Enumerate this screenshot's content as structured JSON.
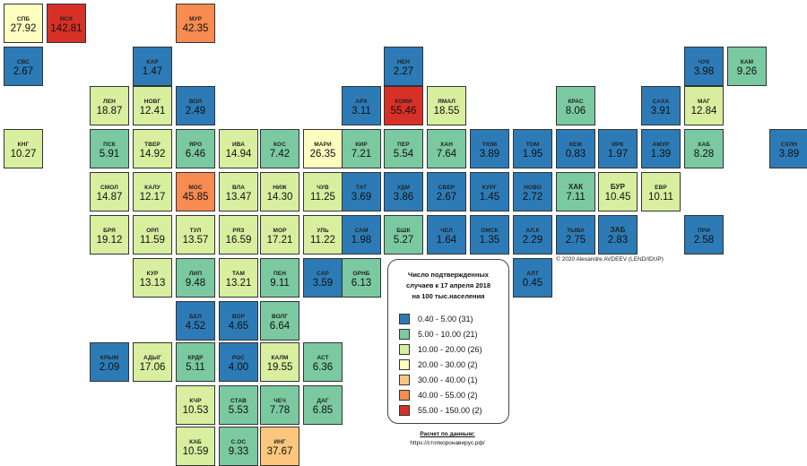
{
  "legend": {
    "title_lines": [
      "Число подтвержденных",
      "случаев к 17 апреля 2018",
      "на 100 тыс.населения"
    ],
    "items": [
      {
        "label": "0.40 - 5.00 (31)",
        "color": "#2d7bb6"
      },
      {
        "label": "5.00 - 10.00 (21)",
        "color": "#7bc9a0"
      },
      {
        "label": "10.00 - 20.00 (26)",
        "color": "#d7ef9f"
      },
      {
        "label": "20.00 - 30.00 (2)",
        "color": "#fdfdbf"
      },
      {
        "label": "30.00 - 40.00 (1)",
        "color": "#fcc77d"
      },
      {
        "label": "40.00 - 55.00 (2)",
        "color": "#f88b50"
      },
      {
        "label": "55.00 - 150.00 (2)",
        "color": "#d73027"
      }
    ]
  },
  "credit": "© 2020 Alexandre AVDEEV (LEND/IDUP)",
  "source": {
    "title": "Расчет по данным:",
    "url": "https://стопкоронавирус.рф/"
  },
  "regions": [
    {
      "code": "СПБ",
      "value": "27.92",
      "v": 27.92
    },
    {
      "code": "МСК",
      "value": "142.81",
      "v": 142.81
    },
    {
      "code": "МУР",
      "value": "42.35",
      "v": 42.35
    },
    {
      "code": "СВС",
      "value": "2.67",
      "v": 2.67
    },
    {
      "code": "КАР",
      "value": "1.47",
      "v": 1.47
    },
    {
      "code": "НЕН",
      "value": "2.27",
      "v": 2.27
    },
    {
      "code": "ЧУК",
      "value": "3.98",
      "v": 3.98
    },
    {
      "code": "КАМ",
      "value": "9.26",
      "v": 9.26
    },
    {
      "code": "ЛЕН",
      "value": "18.87",
      "v": 18.87
    },
    {
      "code": "НОВГ",
      "value": "12.41",
      "v": 12.41
    },
    {
      "code": "ВОЛ",
      "value": "2.49",
      "v": 2.49
    },
    {
      "code": "АРХ",
      "value": "3.11",
      "v": 3.11
    },
    {
      "code": "КОМИ",
      "value": "55.46",
      "v": 55.46
    },
    {
      "code": "ЯМАЛ",
      "value": "18.55",
      "v": 18.55
    },
    {
      "code": "КРАС",
      "value": "8.06",
      "v": 8.06
    },
    {
      "code": "САХА",
      "value": "3.91",
      "v": 3.91
    },
    {
      "code": "МАГ",
      "value": "12.84",
      "v": 12.84
    },
    {
      "code": "КНГ",
      "value": "10.27",
      "v": 10.27
    },
    {
      "code": "ПСК",
      "value": "5.91",
      "v": 5.91
    },
    {
      "code": "ТВЕР",
      "value": "14.92",
      "v": 14.92
    },
    {
      "code": "ЯРО",
      "value": "6.46",
      "v": 6.46
    },
    {
      "code": "ИВА",
      "value": "14.94",
      "v": 14.94
    },
    {
      "code": "КОС",
      "value": "7.42",
      "v": 7.42
    },
    {
      "code": "МАРИ",
      "value": "26.35",
      "v": 26.35
    },
    {
      "code": "КИР",
      "value": "7.21",
      "v": 7.21
    },
    {
      "code": "ПЕР",
      "value": "5.54",
      "v": 5.54
    },
    {
      "code": "ХАН",
      "value": "7.64",
      "v": 7.64
    },
    {
      "code": "ТЮМ",
      "value": "3.89",
      "v": 3.89
    },
    {
      "code": "ТОМ",
      "value": "1.95",
      "v": 1.95
    },
    {
      "code": "КЕМ",
      "value": "0.83",
      "v": 0.83
    },
    {
      "code": "ИРК",
      "value": "1.97",
      "v": 1.97
    },
    {
      "code": "АМУР",
      "value": "1.39",
      "v": 1.39
    },
    {
      "code": "ХАБ",
      "value": "8.28",
      "v": 8.28
    },
    {
      "code": "СХЛН",
      "value": "3.89",
      "v": 3.89
    },
    {
      "code": "СМОЛ",
      "value": "14.87",
      "v": 14.87
    },
    {
      "code": "КАЛУ",
      "value": "12.17",
      "v": 12.17
    },
    {
      "code": "МОС",
      "value": "45.85",
      "v": 45.85
    },
    {
      "code": "ВЛА",
      "value": "13.47",
      "v": 13.47
    },
    {
      "code": "НИЖ",
      "value": "14.30",
      "v": 14.3
    },
    {
      "code": "ЧУВ",
      "value": "11.25",
      "v": 11.25
    },
    {
      "code": "ТАТ",
      "value": "3.69",
      "v": 3.69
    },
    {
      "code": "УДМ",
      "value": "3.86",
      "v": 3.86
    },
    {
      "code": "СВЕР",
      "value": "2.67",
      "v": 2.67
    },
    {
      "code": "КУРГ",
      "value": "1.45",
      "v": 1.45
    },
    {
      "code": "НОВО",
      "value": "2.72",
      "v": 2.72
    },
    {
      "code": "ХАК",
      "value": "7.11",
      "v": 7.11
    },
    {
      "code": "БУР",
      "value": "10.45",
      "v": 10.45
    },
    {
      "code": "ЕВР",
      "value": "10.11",
      "v": 10.11
    },
    {
      "code": "БРЯ",
      "value": "19.12",
      "v": 19.12
    },
    {
      "code": "ОРЛ",
      "value": "11.59",
      "v": 11.59
    },
    {
      "code": "ТУЛ",
      "value": "13.57",
      "v": 13.57
    },
    {
      "code": "РЯЗ",
      "value": "16.59",
      "v": 16.59
    },
    {
      "code": "МОР",
      "value": "17.21",
      "v": 17.21
    },
    {
      "code": "УЛЬ",
      "value": "11.22",
      "v": 11.22
    },
    {
      "code": "САМ",
      "value": "1.98",
      "v": 1.98
    },
    {
      "code": "БШК",
      "value": "5.27",
      "v": 5.27
    },
    {
      "code": "ЧЕЛ",
      "value": "1.64",
      "v": 1.64
    },
    {
      "code": "ОМСК",
      "value": "1.35",
      "v": 1.35
    },
    {
      "code": "АЛ.К",
      "value": "2.29",
      "v": 2.29
    },
    {
      "code": "ТЫВА",
      "value": "2.75",
      "v": 2.75
    },
    {
      "code": "ЗАБ",
      "value": "2.83",
      "v": 2.83
    },
    {
      "code": "ПРИ",
      "value": "2.58",
      "v": 2.58
    },
    {
      "code": "КУР",
      "value": "13.13",
      "v": 13.13
    },
    {
      "code": "ЛИП",
      "value": "9.48",
      "v": 9.48
    },
    {
      "code": "ТАМ",
      "value": "13.21",
      "v": 13.21
    },
    {
      "code": "ПЕН",
      "value": "9.11",
      "v": 9.11
    },
    {
      "code": "САР",
      "value": "3.59",
      "v": 3.59
    },
    {
      "code": "ОРНБ",
      "value": "6.13",
      "v": 6.13
    },
    {
      "code": "АЛТ",
      "value": "0.45",
      "v": 0.45
    },
    {
      "code": "БЕЛ",
      "value": "4.52",
      "v": 4.52
    },
    {
      "code": "ВОР",
      "value": "4.65",
      "v": 4.65
    },
    {
      "code": "ВОЛГ",
      "value": "6.64",
      "v": 6.64
    },
    {
      "code": "КРЫМ",
      "value": "2.09",
      "v": 2.09
    },
    {
      "code": "АДЫГ",
      "value": "17.06",
      "v": 17.06
    },
    {
      "code": "КРДР",
      "value": "5.11",
      "v": 5.11
    },
    {
      "code": "РОС",
      "value": "4.00",
      "v": 4.0
    },
    {
      "code": "КАЛМ",
      "value": "19.55",
      "v": 19.55
    },
    {
      "code": "АСТ",
      "value": "6.36",
      "v": 6.36
    },
    {
      "code": "КЧР",
      "value": "10.53",
      "v": 10.53
    },
    {
      "code": "СТАВ",
      "value": "5.53",
      "v": 5.53
    },
    {
      "code": "ЧЕЧ",
      "value": "7.78",
      "v": 7.78
    },
    {
      "code": "ДАГ",
      "value": "6.85",
      "v": 6.85
    },
    {
      "code": "КАБ",
      "value": "10.59",
      "v": 10.59
    },
    {
      "code": "С.ОС",
      "value": "9.33",
      "v": 9.33
    },
    {
      "code": "ИНГ",
      "value": "37.67",
      "v": 37.67
    }
  ]
}
